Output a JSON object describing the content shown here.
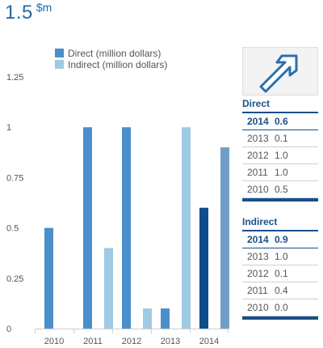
{
  "headline": {
    "value": "1.5",
    "unit": "$m"
  },
  "chart_data": {
    "type": "bar",
    "categories": [
      "2010",
      "2011",
      "2012",
      "2013",
      "2014"
    ],
    "series": [
      {
        "name": "Direct (million dollars)",
        "values": [
          0.5,
          1.0,
          1.0,
          0.1,
          0.6
        ],
        "color": "#4a8fcb",
        "highlight_color": "#0e4e8c"
      },
      {
        "name": "Indirect (million dollars)",
        "values": [
          0.0,
          0.4,
          0.1,
          1.0,
          0.9
        ],
        "color": "#9fcae3",
        "highlight_color": "#6f9fc7"
      }
    ],
    "highlight_category": "2014",
    "yticks": [
      "0",
      "0.25",
      "0.5",
      "0.75",
      "1",
      "1.25"
    ],
    "ytick_values": [
      0,
      0.25,
      0.5,
      0.75,
      1,
      1.25
    ],
    "ylim": [
      0,
      1.25
    ],
    "legend_position": "top",
    "grid": false
  },
  "tables": [
    {
      "title": "Direct",
      "rows": [
        {
          "year": "2014",
          "value": "0.6"
        },
        {
          "year": "2013",
          "value": "0.1"
        },
        {
          "year": "2012",
          "value": "1.0"
        },
        {
          "year": "2011",
          "value": "1.0"
        },
        {
          "year": "2010",
          "value": "0.5"
        }
      ]
    },
    {
      "title": "Indirect",
      "rows": [
        {
          "year": "2014",
          "value": "0.9"
        },
        {
          "year": "2013",
          "value": "1.0"
        },
        {
          "year": "2012",
          "value": "0.1"
        },
        {
          "year": "2011",
          "value": "0.4"
        },
        {
          "year": "2010",
          "value": "0.0"
        }
      ]
    }
  ],
  "icons": {
    "trend": "arrow-up-right-icon"
  }
}
